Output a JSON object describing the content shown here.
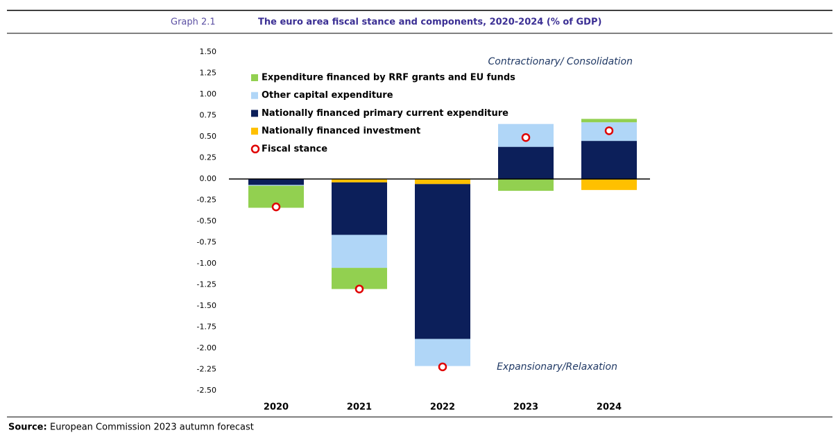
{
  "header": {
    "label": "Graph 2.1",
    "title": "The euro area fiscal stance and components, 2020-2024 (% of GDP)"
  },
  "source": {
    "label": "Source:",
    "text": "European Commission 2023 autumn forecast"
  },
  "chart_data": {
    "type": "bar",
    "stacked": true,
    "categories": [
      "2020",
      "2021",
      "2022",
      "2023",
      "2024"
    ],
    "series": [
      {
        "name": "Expenditure financed by RRF grants and EU funds",
        "color": "#92d050",
        "values": [
          -0.26,
          -0.25,
          0,
          -0.14,
          0.04
        ]
      },
      {
        "name": "Other capital expenditure",
        "color": "#b0d6f7",
        "values": [
          -0.01,
          -0.39,
          -0.32,
          0.27,
          0.22
        ]
      },
      {
        "name": "Nationally financed  primary current expenditure",
        "color": "#0c1f5a",
        "values": [
          -0.07,
          -0.62,
          -1.83,
          0.38,
          0.45
        ]
      },
      {
        "name": "Nationally financed investment",
        "color": "#ffc000",
        "values": [
          0,
          -0.04,
          -0.06,
          0,
          -0.13
        ]
      },
      {
        "name": "Fiscal stance",
        "color": "#e00000",
        "type": "scatter",
        "values": [
          -0.33,
          -1.3,
          -2.22,
          0.49,
          0.57
        ]
      }
    ],
    "ylim": [
      -2.5,
      1.5
    ],
    "yticks": [
      {
        "value": 1.5,
        "label": "1.50"
      },
      1.25,
      {
        "value": 1,
        "label": "1.00"
      },
      0.75,
      {
        "value": 0.5,
        "label": "0.50"
      },
      0.25,
      {
        "value": 0,
        "label": "0.00"
      },
      -0.25,
      {
        "value": -0.5,
        "label": "-0.50"
      },
      -0.75,
      {
        "value": -1,
        "label": "-1.00"
      },
      -1.25,
      {
        "value": -1.5,
        "label": "-1.50"
      },
      -1.75,
      {
        "value": -2,
        "label": "-2.00"
      },
      -2.25,
      {
        "value": -2.5,
        "label": "-2.50"
      }
    ],
    "grid": false,
    "legend": "upper left",
    "annotations": [
      "Contractionary/ Consolidation",
      "Expansionary/Relaxation"
    ]
  }
}
